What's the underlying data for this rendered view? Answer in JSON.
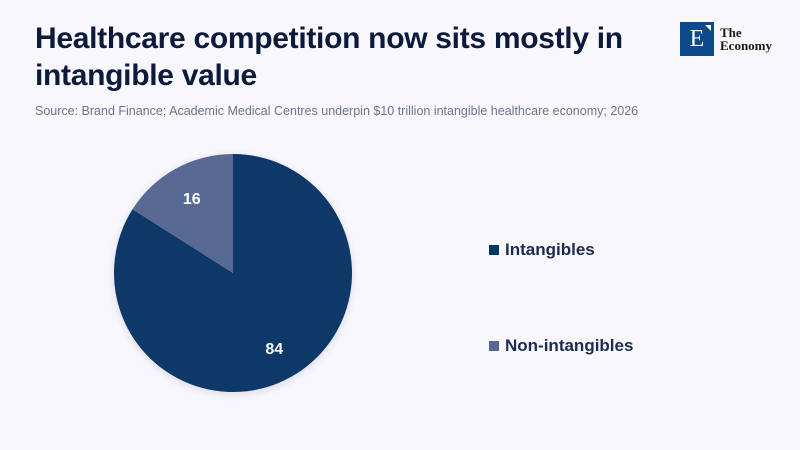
{
  "header": {
    "title": "Healthcare competition now sits mostly in intangible value",
    "subtitle": "Source: Brand Finance; Academic Medical Centres underpin $10 trillion intangible healthcare economy; 2026"
  },
  "logo": {
    "mark": "E",
    "line1": "The",
    "line2": "Economy"
  },
  "chart_data": {
    "type": "pie",
    "title": "Healthcare competition now sits mostly in intangible value",
    "categories": [
      "Intangibles",
      "Non-intangibles"
    ],
    "values": [
      84,
      16
    ],
    "colors": [
      "#083767",
      "#586a94"
    ],
    "data_labels": [
      "84",
      "16"
    ],
    "start_angle": "12 o'clock",
    "direction": "clockwise",
    "legend_position": "right"
  }
}
